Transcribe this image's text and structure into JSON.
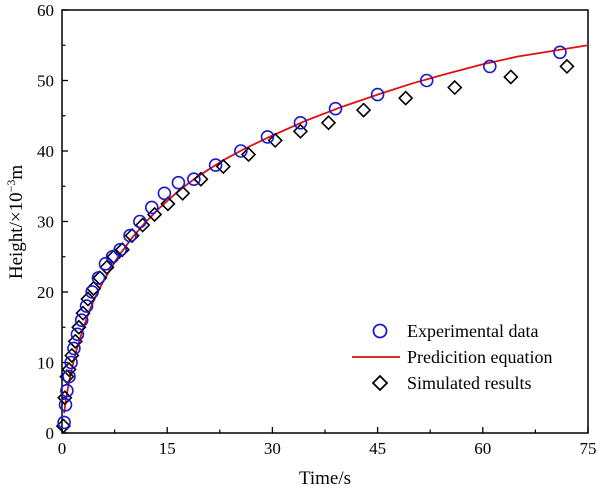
{
  "chart_data": {
    "type": "scatter",
    "title": "",
    "xlabel": "Time/s",
    "ylabel": {
      "base": "Height/×10",
      "exp": "−3",
      "unit": "m"
    },
    "xlim": [
      0,
      75
    ],
    "ylim": [
      0,
      60
    ],
    "xticks": [
      "0",
      "15",
      "30",
      "45",
      "60",
      "75"
    ],
    "yticks": [
      "0",
      "10",
      "20",
      "30",
      "40",
      "50",
      "60"
    ],
    "grid": false,
    "legend_position": "bottom-right",
    "colors": {
      "experimental": "#1a1acc",
      "prediction": "#dd1111",
      "simulated": "#000000",
      "axis": "#000000"
    },
    "series": [
      {
        "name": "Experimental data",
        "marker": "circle",
        "x": [
          0.3,
          0.5,
          0.7,
          1.0,
          1.3,
          1.7,
          2.2,
          2.8,
          3.5,
          4.3,
          5.2,
          6.2,
          7.2,
          8.3,
          9.7,
          11.1,
          12.8,
          14.6,
          16.6,
          18.8,
          21.9,
          25.5,
          29.3,
          34.0,
          39.0,
          45.0,
          52.0,
          61.0,
          71.0
        ],
        "y": [
          1.5,
          4.0,
          6.0,
          8.0,
          10.0,
          12.0,
          14.0,
          16.0,
          18.0,
          20.0,
          22.0,
          24.0,
          25.0,
          26.0,
          28.0,
          30.0,
          32.0,
          34.0,
          35.5,
          36.0,
          38.0,
          40.0,
          42.0,
          44.0,
          46.0,
          48.0,
          50.0,
          52.0,
          54.0
        ]
      },
      {
        "name": "Predicition equation",
        "marker": "line",
        "x": [
          0.3,
          0.6,
          1.0,
          1.5,
          2.0,
          3.0,
          4.0,
          5.0,
          6.0,
          7.0,
          8.0,
          10.0,
          12.0,
          14.0,
          16.0,
          18.0,
          20.0,
          23.0,
          26.0,
          30.0,
          35.0,
          40.0,
          45.0,
          50.0,
          55.0,
          60.0,
          65.0,
          70.0,
          75.0
        ],
        "y": [
          2.8,
          5.0,
          7.2,
          9.5,
          11.5,
          14.8,
          17.6,
          19.8,
          21.7,
          23.4,
          25.0,
          27.7,
          30.0,
          32.0,
          33.8,
          35.4,
          36.8,
          38.7,
          40.3,
          42.2,
          44.4,
          46.3,
          48.0,
          49.6,
          51.0,
          52.3,
          53.4,
          54.2,
          55.0
        ]
      },
      {
        "name": "Simulated results",
        "marker": "diamond",
        "x": [
          0.2,
          0.4,
          0.7,
          1.0,
          1.4,
          1.9,
          2.4,
          3.0,
          3.7,
          4.5,
          5.4,
          6.4,
          7.4,
          8.6,
          10.0,
          11.5,
          13.2,
          15.1,
          17.2,
          19.8,
          23.0,
          26.6,
          30.4,
          34.0,
          38.0,
          43.0,
          49.0,
          56.0,
          64.0,
          72.0
        ],
        "y": [
          1.0,
          5.0,
          8.0,
          9.0,
          11.0,
          13.0,
          15.0,
          17.0,
          19.0,
          20.5,
          22.0,
          23.5,
          25.0,
          26.0,
          28.0,
          29.5,
          31.0,
          32.5,
          34.0,
          36.0,
          37.8,
          39.5,
          41.5,
          42.8,
          44.0,
          45.8,
          47.5,
          49.0,
          50.5,
          52.0
        ]
      }
    ]
  }
}
